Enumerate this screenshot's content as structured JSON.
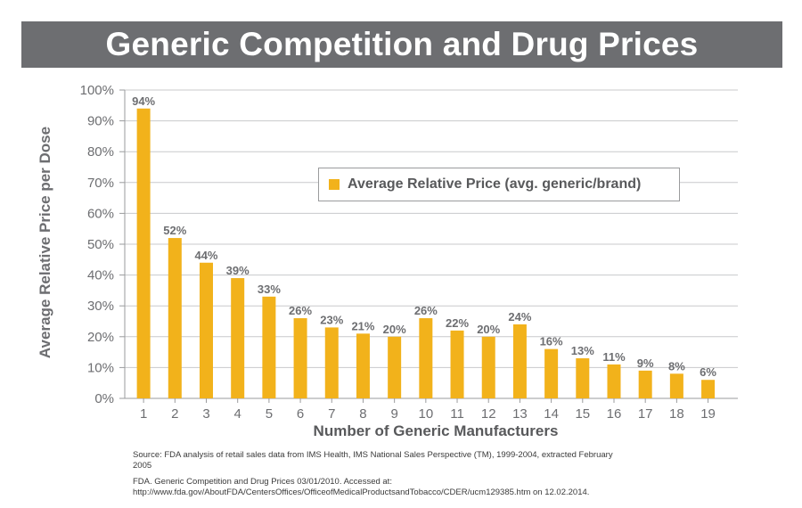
{
  "title": "Generic Competition and Drug Prices",
  "footer": {
    "source": "Source: FDA analysis of retail sales data from IMS Health, IMS National Sales Perspective (TM), 1999-2004, extracted February 2005",
    "citation": "FDA. Generic Competition and Drug Prices 03/01/2010. Accessed at: http://www.fda.gov/AboutFDA/CentersOffices/OfficeofMedicalProductsandTobacco/CDER/ucm129385.htm on 12.02.2014."
  },
  "colors": {
    "bar": "#f2b21b",
    "title_bar": "#6d6e71",
    "axis_text": "#6d6e71",
    "grid": "#c8c9cb"
  },
  "chart_data": {
    "type": "bar",
    "xlabel": "Number of Generic Manufacturers",
    "ylabel": "Average Relative Price per Dose",
    "ylim": [
      0,
      100
    ],
    "grid": true,
    "legend_position": "upper-right",
    "yticks": [
      "0%",
      "10%",
      "20%",
      "30%",
      "40%",
      "50%",
      "60%",
      "70%",
      "80%",
      "90%",
      "100%"
    ],
    "categories": [
      "1",
      "2",
      "3",
      "4",
      "5",
      "6",
      "7",
      "8",
      "9",
      "10",
      "11",
      "12",
      "13",
      "14",
      "15",
      "16",
      "17",
      "18",
      "19"
    ],
    "series": [
      {
        "name": "Average Relative Price (avg. generic/brand)",
        "values": [
          94,
          52,
          44,
          39,
          33,
          26,
          23,
          21,
          20,
          26,
          22,
          20,
          24,
          16,
          13,
          11,
          9,
          8,
          6
        ],
        "labels": [
          "94%",
          "52%",
          "44%",
          "39%",
          "33%",
          "26%",
          "23%",
          "21%",
          "20%",
          "26%",
          "22%",
          "20%",
          "24%",
          "16%",
          "13%",
          "11%",
          "9%",
          "8%",
          "6%"
        ]
      }
    ]
  }
}
